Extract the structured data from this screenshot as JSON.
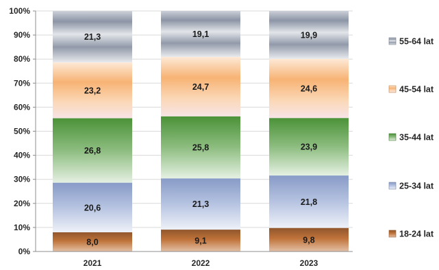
{
  "chart_data": {
    "type": "bar",
    "stacked": true,
    "categories": [
      "2021",
      "2022",
      "2023"
    ],
    "series": [
      {
        "name": "18-24 lat",
        "values": [
          8.0,
          9.1,
          9.8
        ],
        "labels": [
          "8,0",
          "9,1",
          "9,8"
        ],
        "color": "#c0733a"
      },
      {
        "name": "25-34 lat",
        "values": [
          20.6,
          21.3,
          21.8
        ],
        "labels": [
          "20,6",
          "21,3",
          "21,8"
        ],
        "color": "#8fa3d1"
      },
      {
        "name": "35-44 lat",
        "values": [
          26.8,
          25.8,
          23.9
        ],
        "labels": [
          "26,8",
          "25,8",
          "23,9"
        ],
        "color": "#4f9a3b"
      },
      {
        "name": "45-54 lat",
        "values": [
          23.2,
          24.7,
          24.6
        ],
        "labels": [
          "23,2",
          "24,7",
          "24,6"
        ],
        "color": "#f6a55c"
      },
      {
        "name": "55-64 lat",
        "values": [
          21.3,
          19.1,
          19.9
        ],
        "labels": [
          "21,3",
          "19,1",
          "19,9"
        ],
        "color": "#8c95a6"
      }
    ],
    "yticks": [
      "0%",
      "10%",
      "20%",
      "30%",
      "40%",
      "50%",
      "60%",
      "70%",
      "80%",
      "90%",
      "100%"
    ],
    "ylim": [
      0,
      100
    ],
    "grid": true,
    "legend": "right"
  }
}
